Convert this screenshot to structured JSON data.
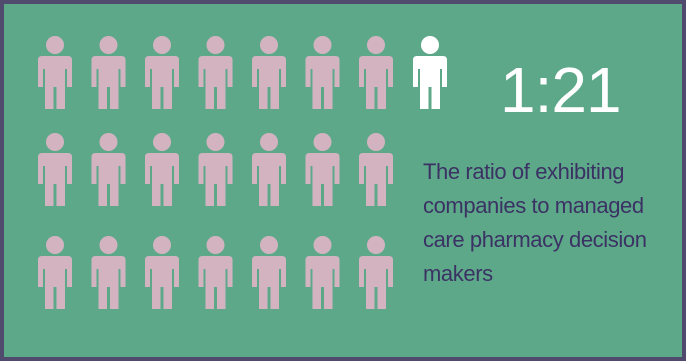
{
  "infographic": {
    "ratio": "1:21",
    "description": "The ratio of exhibiting companies to managed care pharmacy decision makers",
    "people": {
      "rows": 3,
      "per_row": 7,
      "highlighted_count": 1,
      "background_count": 21
    },
    "colors": {
      "background_border": "#4f4a6e",
      "panel": "#5ea88a",
      "person_muted": "#d4b3c1",
      "person_highlight": "#ffffff",
      "ratio_text": "#ffffff",
      "description_text": "#3b3264"
    },
    "icons": {
      "person": "person-icon"
    }
  }
}
